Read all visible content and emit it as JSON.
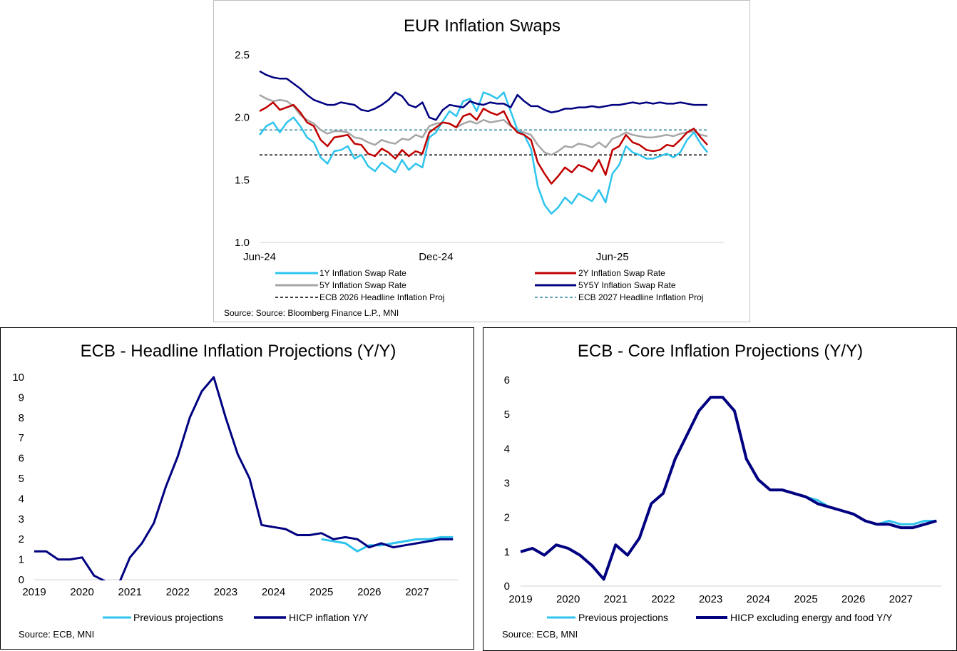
{
  "chart_data": [
    {
      "id": "swaps",
      "type": "line",
      "title": "EUR Inflation Swaps",
      "xlabel": "",
      "ylabel": "",
      "ylim": [
        1.0,
        2.5
      ],
      "yticks": [
        "1.0",
        "1.5",
        "2.0",
        "2.5"
      ],
      "xticks": [
        "Jun-24",
        "Dec-24",
        "Jun-25"
      ],
      "x_index_range": [
        0,
        66
      ],
      "xtick_index": [
        0,
        26,
        52
      ],
      "series": [
        {
          "name": "1Y Inflation Swap Rate",
          "color": "#2ec4ee",
          "style": "solid",
          "values": [
            1.86,
            1.93,
            1.96,
            1.88,
            1.96,
            2.0,
            1.93,
            1.84,
            1.8,
            1.68,
            1.63,
            1.73,
            1.74,
            1.77,
            1.67,
            1.7,
            1.61,
            1.57,
            1.64,
            1.6,
            1.56,
            1.66,
            1.58,
            1.63,
            1.6,
            1.84,
            1.88,
            1.97,
            2.05,
            2.01,
            2.13,
            2.15,
            2.05,
            2.2,
            2.18,
            2.15,
            2.2,
            2.05,
            1.9,
            1.86,
            1.75,
            1.45,
            1.3,
            1.23,
            1.28,
            1.36,
            1.31,
            1.39,
            1.36,
            1.33,
            1.42,
            1.32,
            1.55,
            1.62,
            1.77,
            1.72,
            1.7,
            1.67,
            1.67,
            1.69,
            1.71,
            1.68,
            1.72,
            1.82,
            1.88,
            1.79,
            1.72
          ]
        },
        {
          "name": "2Y Inflation Swap Rate",
          "color": "#c00000",
          "style": "solid",
          "values": [
            2.05,
            2.08,
            2.12,
            2.06,
            2.08,
            2.1,
            2.04,
            1.96,
            1.93,
            1.82,
            1.77,
            1.84,
            1.85,
            1.86,
            1.79,
            1.78,
            1.71,
            1.69,
            1.75,
            1.72,
            1.67,
            1.74,
            1.69,
            1.73,
            1.71,
            1.88,
            1.92,
            1.96,
            1.95,
            1.92,
            2.01,
            2.03,
            1.98,
            2.07,
            2.04,
            2.02,
            2.05,
            1.94,
            1.88,
            1.86,
            1.82,
            1.64,
            1.55,
            1.47,
            1.53,
            1.6,
            1.56,
            1.62,
            1.6,
            1.57,
            1.66,
            1.54,
            1.74,
            1.77,
            1.86,
            1.8,
            1.78,
            1.74,
            1.73,
            1.74,
            1.78,
            1.77,
            1.82,
            1.88,
            1.91,
            1.84,
            1.78
          ]
        },
        {
          "name": "5Y Inflation Swap Rate",
          "color": "#a6a6a6",
          "style": "solid",
          "values": [
            2.18,
            2.15,
            2.13,
            2.14,
            2.13,
            2.09,
            2.02,
            1.98,
            1.95,
            1.9,
            1.87,
            1.89,
            1.89,
            1.88,
            1.84,
            1.83,
            1.8,
            1.78,
            1.82,
            1.8,
            1.79,
            1.83,
            1.82,
            1.86,
            1.84,
            1.93,
            1.95,
            1.96,
            1.95,
            1.92,
            1.95,
            1.97,
            1.95,
            1.98,
            1.96,
            1.97,
            1.98,
            1.93,
            1.9,
            1.88,
            1.86,
            1.78,
            1.72,
            1.7,
            1.73,
            1.77,
            1.76,
            1.79,
            1.78,
            1.76,
            1.8,
            1.76,
            1.83,
            1.85,
            1.88,
            1.86,
            1.85,
            1.84,
            1.84,
            1.85,
            1.86,
            1.85,
            1.87,
            1.88,
            1.89,
            1.86,
            1.85
          ]
        },
        {
          "name": "5Y5Y Inflation Swap Rate",
          "color": "#000080",
          "style": "solid",
          "values": [
            2.37,
            2.34,
            2.32,
            2.31,
            2.31,
            2.27,
            2.23,
            2.18,
            2.14,
            2.12,
            2.1,
            2.1,
            2.12,
            2.11,
            2.1,
            2.06,
            2.05,
            2.07,
            2.1,
            2.14,
            2.2,
            2.17,
            2.1,
            2.08,
            2.12,
            2.0,
            1.98,
            2.06,
            2.1,
            2.09,
            2.08,
            2.13,
            2.11,
            2.1,
            2.12,
            2.11,
            2.11,
            2.08,
            2.18,
            2.13,
            2.09,
            2.09,
            2.06,
            2.04,
            2.05,
            2.07,
            2.07,
            2.08,
            2.08,
            2.09,
            2.08,
            2.09,
            2.1,
            2.1,
            2.11,
            2.12,
            2.11,
            2.12,
            2.11,
            2.12,
            2.11,
            2.11,
            2.12,
            2.11,
            2.1,
            2.1,
            2.1
          ]
        },
        {
          "name": "ECB 2026 Headline Inflation Proj",
          "color": "#000000",
          "style": "dashed",
          "values": [
            1.7,
            1.7
          ]
        },
        {
          "name": "ECB 2027 Headline Inflation Proj",
          "color": "#31859c",
          "style": "dashed",
          "values": [
            1.9,
            1.9
          ]
        }
      ],
      "legend": "bottom",
      "source": "Source: Source: Bloomberg Finance L.P., MNI"
    },
    {
      "id": "headline",
      "type": "line",
      "title": "ECB - Headline Inflation Projections (Y/Y)",
      "xlabel": "",
      "ylabel": "",
      "ylim": [
        0,
        10
      ],
      "yticks": [
        "0",
        "1",
        "2",
        "3",
        "4",
        "5",
        "6",
        "7",
        "8",
        "9",
        "10"
      ],
      "xticks": [
        "2019",
        "2020",
        "2021",
        "2022",
        "2023",
        "2024",
        "2025",
        "2026",
        "2027"
      ],
      "x_start": 2019,
      "x_end": 2027.85,
      "x_step": 0.25,
      "series": [
        {
          "name": "Previous projections",
          "color": "#2ec4ee",
          "start": 2025.0,
          "values": [
            2.0,
            1.9,
            1.8,
            1.4,
            1.7,
            1.7,
            1.8,
            1.9,
            2.0,
            2.0,
            2.1,
            2.1
          ]
        },
        {
          "name": "HICP inflation Y/Y",
          "color": "#000080",
          "start": 2019.0,
          "values": [
            1.4,
            1.4,
            1.0,
            1.0,
            1.1,
            0.2,
            -0.1,
            -0.3,
            1.1,
            1.8,
            2.8,
            4.6,
            6.1,
            8.0,
            9.3,
            10.0,
            8.0,
            6.2,
            5.0,
            2.7,
            2.6,
            2.5,
            2.2,
            2.2,
            2.3,
            2.0,
            2.1,
            2.0,
            1.6,
            1.8,
            1.6,
            1.7,
            1.8,
            1.9,
            2.0,
            2.0
          ]
        }
      ],
      "legend": "bottom",
      "source": "Source: ECB, MNI"
    },
    {
      "id": "core",
      "type": "line",
      "title": "ECB - Core Inflation Projections (Y/Y)",
      "xlabel": "",
      "ylabel": "",
      "ylim": [
        0,
        6
      ],
      "yticks": [
        "0",
        "1",
        "2",
        "3",
        "4",
        "5",
        "6"
      ],
      "xticks": [
        "2019",
        "2020",
        "2021",
        "2022",
        "2023",
        "2024",
        "2025",
        "2026",
        "2027"
      ],
      "x_start": 2019,
      "x_end": 2027.85,
      "x_step": 0.25,
      "series": [
        {
          "name": "Previous projections",
          "color": "#2ec4ee",
          "start": 2025.0,
          "values": [
            2.6,
            2.5,
            2.3,
            2.2,
            2.1,
            1.9,
            1.8,
            1.9,
            1.8,
            1.8,
            1.9,
            1.9
          ]
        },
        {
          "name": "HICP excluding energy and food Y/Y",
          "color": "#000080",
          "start": 2019.0,
          "values": [
            1.0,
            1.1,
            0.9,
            1.2,
            1.1,
            0.9,
            0.6,
            0.2,
            1.2,
            0.9,
            1.4,
            2.4,
            2.7,
            3.7,
            4.4,
            5.1,
            5.5,
            5.5,
            5.1,
            3.7,
            3.1,
            2.8,
            2.8,
            2.7,
            2.6,
            2.4,
            2.3,
            2.2,
            2.1,
            1.9,
            1.8,
            1.8,
            1.7,
            1.7,
            1.8,
            1.9
          ]
        }
      ],
      "legend": "bottom",
      "source": "Source: ECB, MNI"
    }
  ]
}
